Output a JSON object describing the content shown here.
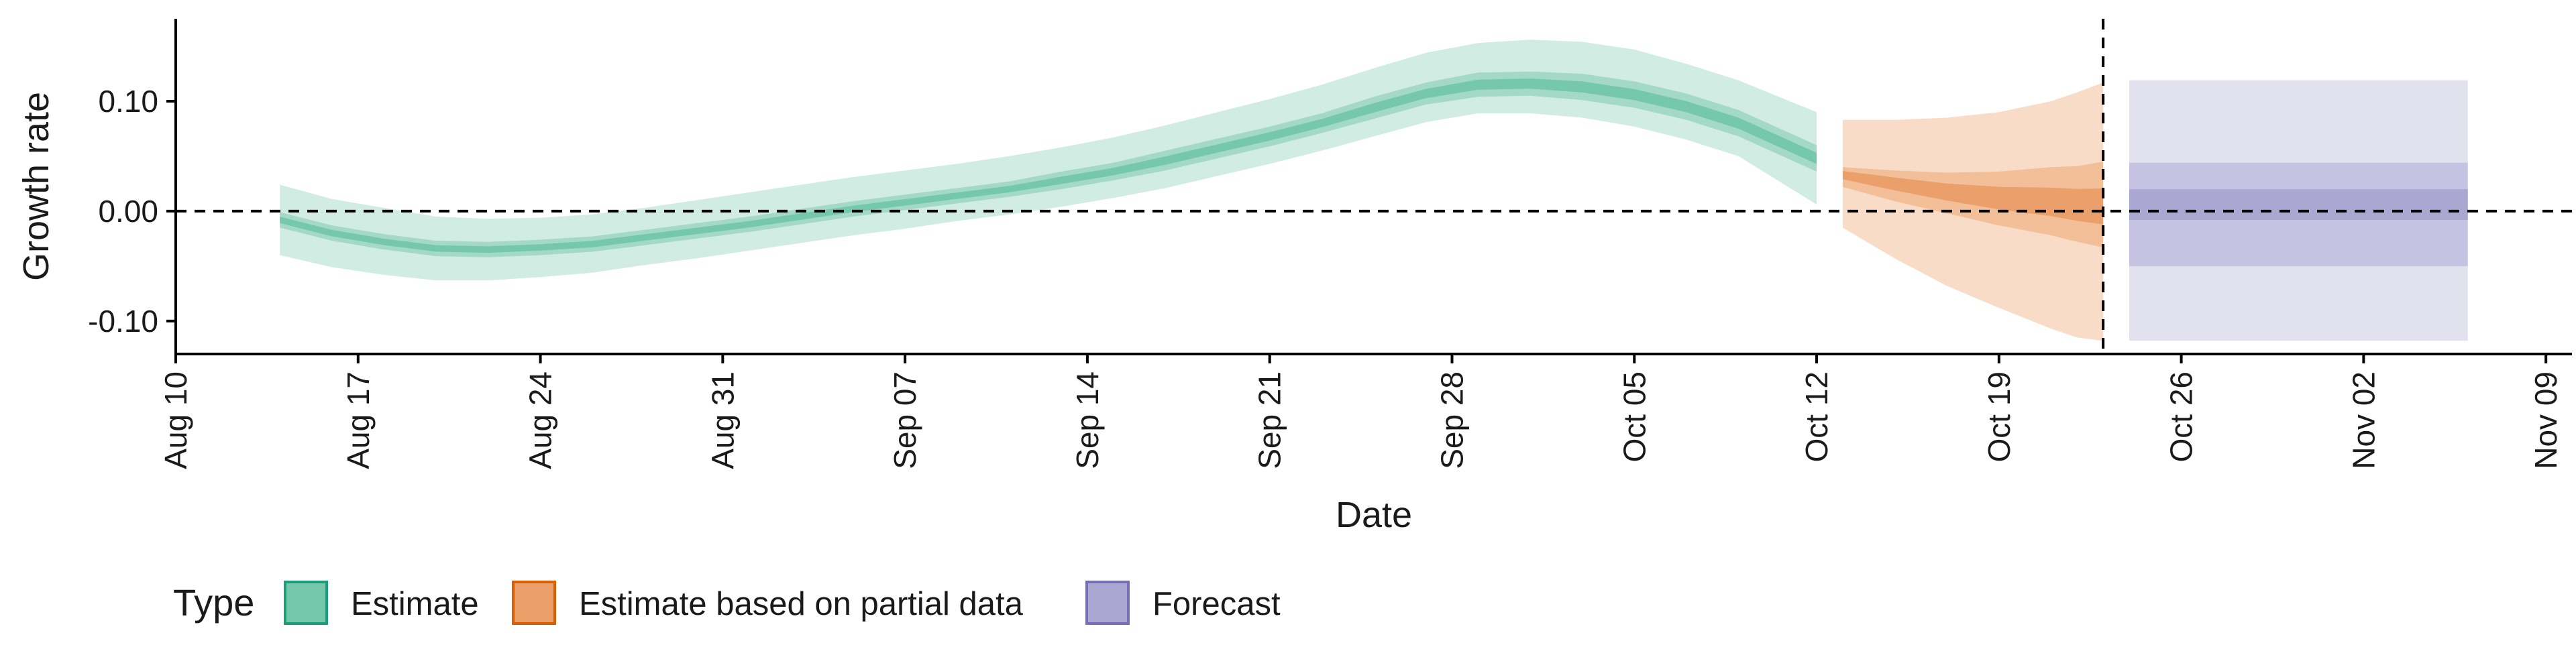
{
  "chart_data": {
    "type": "area",
    "xlabel": "Date",
    "ylabel": "Growth rate",
    "x_range": [
      "2020-08-10",
      "2020-11-10"
    ],
    "ylim": [
      -0.13,
      0.175
    ],
    "grid": false,
    "x_ticks": [
      {
        "date": "2020-08-10",
        "label": "Aug 10"
      },
      {
        "date": "2020-08-17",
        "label": "Aug 17"
      },
      {
        "date": "2020-08-24",
        "label": "Aug 24"
      },
      {
        "date": "2020-08-31",
        "label": "Aug 31"
      },
      {
        "date": "2020-09-07",
        "label": "Sep 07"
      },
      {
        "date": "2020-09-14",
        "label": "Sep 14"
      },
      {
        "date": "2020-09-21",
        "label": "Sep 21"
      },
      {
        "date": "2020-09-28",
        "label": "Sep 28"
      },
      {
        "date": "2020-10-05",
        "label": "Oct 05"
      },
      {
        "date": "2020-10-12",
        "label": "Oct 12"
      },
      {
        "date": "2020-10-19",
        "label": "Oct 19"
      },
      {
        "date": "2020-10-26",
        "label": "Oct 26"
      },
      {
        "date": "2020-11-02",
        "label": "Nov 02"
      },
      {
        "date": "2020-11-09",
        "label": "Nov 09"
      }
    ],
    "y_ticks": [
      {
        "value": 0.1,
        "label": "0.10"
      },
      {
        "value": 0.0,
        "label": "0.00"
      },
      {
        "value": -0.1,
        "label": "-0.10"
      }
    ],
    "reference_lines": [
      {
        "orientation": "horizontal",
        "value": 0,
        "style": "dashed"
      },
      {
        "orientation": "vertical",
        "date": "2020-10-23",
        "style": "dashed"
      }
    ],
    "legend": {
      "title": "Type",
      "position": "bottom-left",
      "entries": [
        {
          "label": "Estimate",
          "fill": "#75c8ac",
          "stroke": "#1b9e77"
        },
        {
          "label": "Estimate based on partial data",
          "fill": "#eba06c",
          "stroke": "#d95f02"
        },
        {
          "label": "Forecast",
          "fill": "#aaa8d2",
          "stroke": "#7570b3"
        }
      ]
    },
    "series": [
      {
        "type_label": "Estimate",
        "colors": {
          "outer": "#d1ece3",
          "mid": "#a3d9c6",
          "inner": "#75c8ac"
        },
        "dates": [
          "2020-08-14",
          "2020-08-16",
          "2020-08-18",
          "2020-08-20",
          "2020-08-22",
          "2020-08-24",
          "2020-08-26",
          "2020-08-28",
          "2020-08-30",
          "2020-09-01",
          "2020-09-03",
          "2020-09-05",
          "2020-09-07",
          "2020-09-09",
          "2020-09-11",
          "2020-09-13",
          "2020-09-15",
          "2020-09-17",
          "2020-09-19",
          "2020-09-21",
          "2020-09-23",
          "2020-09-25",
          "2020-09-27",
          "2020-09-29",
          "2020-10-01",
          "2020-10-03",
          "2020-10-05",
          "2020-10-07",
          "2020-10-09",
          "2020-10-12"
        ],
        "median": [
          -0.008,
          -0.02,
          -0.028,
          -0.034,
          -0.035,
          -0.033,
          -0.03,
          -0.024,
          -0.018,
          -0.012,
          -0.005,
          0.002,
          0.008,
          0.014,
          0.02,
          0.028,
          0.036,
          0.046,
          0.057,
          0.068,
          0.08,
          0.094,
          0.107,
          0.115,
          0.116,
          0.113,
          0.106,
          0.095,
          0.08,
          0.048
        ],
        "lower_50": [
          -0.015,
          -0.027,
          -0.035,
          -0.041,
          -0.042,
          -0.04,
          -0.037,
          -0.031,
          -0.025,
          -0.019,
          -0.012,
          -0.005,
          0.001,
          0.007,
          0.013,
          0.02,
          0.028,
          0.037,
          0.048,
          0.059,
          0.071,
          0.084,
          0.097,
          0.104,
          0.105,
          0.101,
          0.094,
          0.083,
          0.068,
          0.036
        ],
        "upper_50": [
          -0.001,
          -0.013,
          -0.021,
          -0.027,
          -0.028,
          -0.026,
          -0.023,
          -0.017,
          -0.011,
          -0.005,
          0.002,
          0.009,
          0.015,
          0.021,
          0.027,
          0.036,
          0.044,
          0.055,
          0.066,
          0.077,
          0.089,
          0.104,
          0.117,
          0.126,
          0.127,
          0.125,
          0.118,
          0.107,
          0.092,
          0.06
        ],
        "lower_90": [
          -0.04,
          -0.051,
          -0.058,
          -0.063,
          -0.063,
          -0.06,
          -0.056,
          -0.049,
          -0.043,
          -0.036,
          -0.029,
          -0.022,
          -0.016,
          -0.009,
          -0.003,
          0.004,
          0.012,
          0.021,
          0.032,
          0.043,
          0.055,
          0.068,
          0.081,
          0.089,
          0.089,
          0.085,
          0.077,
          0.065,
          0.05,
          0.006
        ],
        "upper_90": [
          0.024,
          0.011,
          0.003,
          -0.005,
          -0.007,
          -0.006,
          -0.003,
          0.003,
          0.01,
          0.017,
          0.024,
          0.031,
          0.037,
          0.043,
          0.05,
          0.058,
          0.067,
          0.078,
          0.09,
          0.102,
          0.115,
          0.13,
          0.144,
          0.153,
          0.156,
          0.154,
          0.147,
          0.134,
          0.119,
          0.09
        ]
      },
      {
        "type_label": "Estimate based on partial data",
        "colors": {
          "outer": "#f9dcc8",
          "mid": "#f3bf98",
          "inner": "#eba06c"
        },
        "dates": [
          "2020-10-13",
          "2020-10-15",
          "2020-10-17",
          "2020-10-19",
          "2020-10-21",
          "2020-10-22",
          "2020-10-23"
        ],
        "median": [
          0.034,
          0.026,
          0.018,
          0.012,
          0.008,
          0.005,
          0.003
        ],
        "lower_50": [
          0.022,
          0.009,
          -0.002,
          -0.013,
          -0.022,
          -0.028,
          -0.033
        ],
        "upper_50": [
          0.04,
          0.037,
          0.035,
          0.036,
          0.04,
          0.041,
          0.045
        ],
        "lower_90": [
          -0.015,
          -0.043,
          -0.068,
          -0.088,
          -0.107,
          -0.115,
          -0.118
        ],
        "upper_90": [
          0.083,
          0.083,
          0.085,
          0.09,
          0.1,
          0.108,
          0.117
        ]
      },
      {
        "type_label": "Forecast",
        "colors": {
          "outer": "#e2e1ee",
          "mid": "#c5c3e1",
          "inner": "#aaa8d2"
        },
        "dates": [
          "2020-10-24",
          "2020-11-06"
        ],
        "median": [
          0.0,
          0.0
        ],
        "lower_20": [
          -0.008,
          -0.008
        ],
        "upper_20": [
          0.02,
          0.02
        ],
        "lower_50": [
          -0.05,
          -0.05
        ],
        "upper_50": [
          0.044,
          0.044
        ],
        "lower_90": [
          -0.118,
          -0.118
        ],
        "upper_90": [
          0.119,
          0.119
        ]
      }
    ]
  }
}
